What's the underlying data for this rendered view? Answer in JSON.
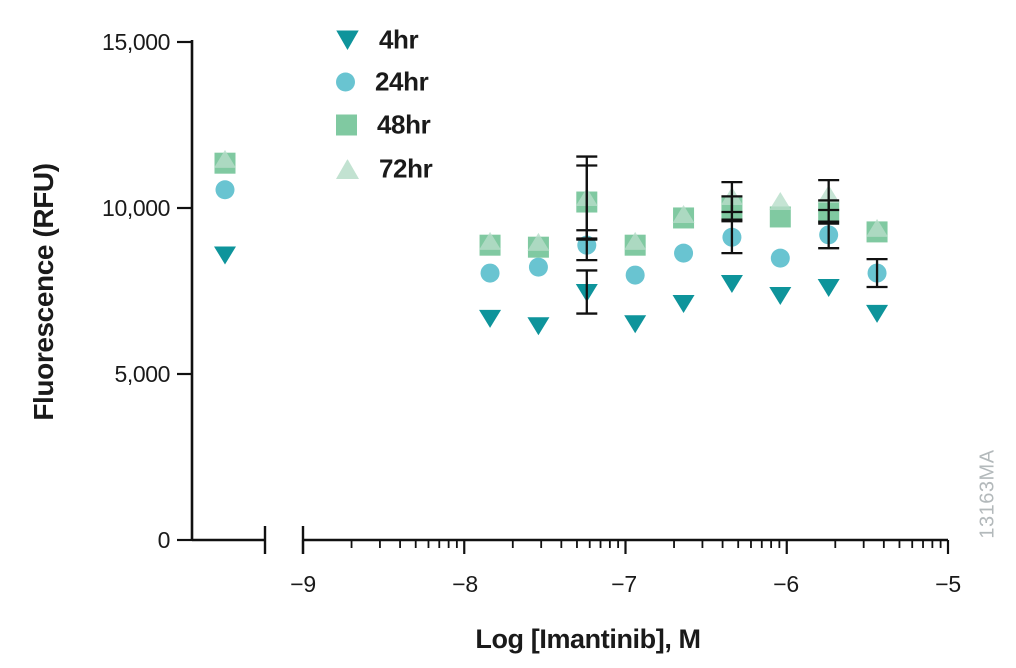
{
  "figure": {
    "watermark": "13163MA"
  },
  "chart_data": {
    "type": "scatter",
    "title": "",
    "xlabel": "Log [Imantinib], M",
    "ylabel": "Fluorescence (RFU)",
    "x_axis": {
      "scale": "log",
      "broken": true,
      "note": "untreated control cluster plotted left of axis break",
      "range": [
        -9,
        -5
      ],
      "major_ticks": [
        -9,
        -8,
        -7,
        -6,
        -5
      ],
      "major_tick_labels": [
        "−9",
        "−8",
        "−7",
        "−6",
        "−5"
      ],
      "minor_tick_multipliers": [
        2,
        3,
        4,
        5,
        6,
        7,
        8,
        9
      ]
    },
    "y_axis": {
      "range": [
        0,
        15000
      ],
      "ticks": [
        0,
        5000,
        10000,
        15000
      ],
      "tick_labels": [
        "0",
        "5,000",
        "10,000",
        "15,000"
      ]
    },
    "legend": {
      "position": "top-left-inside",
      "items": [
        "4hr",
        "24hr",
        "48hr",
        "72hr"
      ]
    },
    "x_log_values": [
      -7.84,
      -7.54,
      -7.24,
      -6.94,
      -6.64,
      -6.34,
      -6.04,
      -5.74,
      -5.44
    ],
    "series": [
      {
        "name": "4hr",
        "marker": "triangle-down",
        "color": "#0E949B",
        "control_y": 8600,
        "y": [
          6690,
          6470,
          7470,
          6530,
          7140,
          7740,
          7380,
          7620,
          6840
        ],
        "err": [
          0,
          0,
          650,
          0,
          0,
          0,
          0,
          0,
          0
        ]
      },
      {
        "name": "24hr",
        "marker": "circle",
        "color": "#69C4D1",
        "control_y": 10550,
        "y": [
          8040,
          8220,
          8880,
          7980,
          8640,
          9120,
          8490,
          9190,
          8040
        ],
        "err": [
          0,
          0,
          450,
          0,
          0,
          480,
          0,
          400,
          420
        ]
      },
      {
        "name": "48hr",
        "marker": "square",
        "color": "#80C9A1",
        "control_y": 11350,
        "y": [
          8880,
          8820,
          10180,
          8880,
          9700,
          10000,
          9730,
          9880,
          9280
        ],
        "err": [
          0,
          0,
          1100,
          0,
          0,
          350,
          0,
          350,
          0
        ]
      },
      {
        "name": "72hr",
        "marker": "triangle-up",
        "color": "#B7DDC9",
        "control_y": 11450,
        "y": [
          8980,
          8950,
          10300,
          8980,
          9790,
          10330,
          10180,
          10390,
          9370
        ],
        "err": [
          0,
          0,
          1250,
          0,
          0,
          450,
          0,
          450,
          0
        ]
      }
    ]
  }
}
